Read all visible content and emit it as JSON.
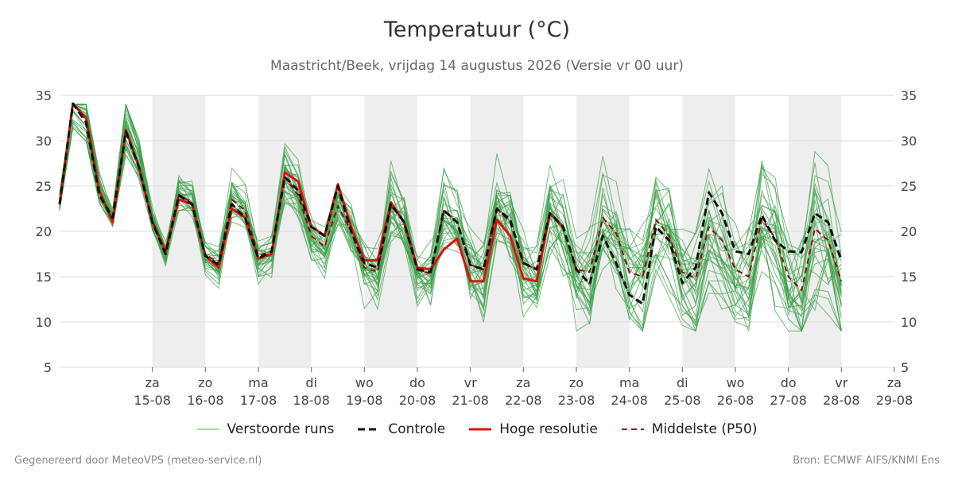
{
  "title": "Temperatuur (°C)",
  "subtitle": "Maastricht/Beek, vrijdag 14 augustus 2026 (Versie vr 00 uur)",
  "footer_left": "Gegenereerd door MeteoVPS (meteo-service.nl)",
  "footer_right": "Bron: ECMWF AIFS/KNMI Ens",
  "legend": [
    {
      "label": "Verstoorde runs",
      "color": "#5ab05a",
      "style": "thin-solid"
    },
    {
      "label": "Controle",
      "color": "#111111",
      "style": "dashed"
    },
    {
      "label": "Hoge resolutie",
      "color": "#dd1111",
      "style": "solid"
    },
    {
      "label": "Middelste (P50)",
      "color": "#8b1010",
      "style": "dashed"
    }
  ],
  "colors": {
    "ensemble": "#3fa04a",
    "control": "#111111",
    "hires": "#dd1111",
    "median": "#8b1010",
    "band": "#eeeeee",
    "grid": "#dddddd"
  },
  "chart_data": {
    "type": "line",
    "ylim": [
      5,
      35
    ],
    "yticks": [
      5,
      10,
      15,
      20,
      25,
      30,
      35
    ],
    "x_ticks": [
      {
        "day": "za",
        "date": "15-08",
        "x": 1
      },
      {
        "day": "zo",
        "date": "16-08",
        "x": 2
      },
      {
        "day": "ma",
        "date": "17-08",
        "x": 3
      },
      {
        "day": "di",
        "date": "18-08",
        "x": 4
      },
      {
        "day": "wo",
        "date": "19-08",
        "x": 5
      },
      {
        "day": "do",
        "date": "20-08",
        "x": 6
      },
      {
        "day": "vr",
        "date": "21-08",
        "x": 7
      },
      {
        "day": "za",
        "date": "22-08",
        "x": 8
      },
      {
        "day": "zo",
        "date": "23-08",
        "x": 9
      },
      {
        "day": "ma",
        "date": "24-08",
        "x": 10
      },
      {
        "day": "di",
        "date": "25-08",
        "x": 11
      },
      {
        "day": "wo",
        "date": "26-08",
        "x": 12
      },
      {
        "day": "do",
        "date": "27-08",
        "x": 13
      },
      {
        "day": "vr",
        "date": "28-08",
        "x": 14
      },
      {
        "day": "za",
        "date": "29-08",
        "x": 15
      }
    ],
    "xlim": [
      -0.75,
      15
    ],
    "shaded_days": [
      [
        1,
        2
      ],
      [
        3,
        4
      ],
      [
        5,
        6
      ],
      [
        7,
        8
      ],
      [
        9,
        10
      ],
      [
        11,
        12
      ],
      [
        13,
        14
      ]
    ],
    "step": 0.25,
    "x_start": -0.75,
    "ensemble_member_count": 30,
    "series": [
      {
        "name": "Hoge resolutie",
        "values": [
          23.0,
          34.1,
          32.5,
          24.5,
          21.0,
          31.2,
          27.0,
          21.0,
          17.8,
          23.5,
          23.0,
          17.3,
          16.0,
          22.5,
          21.5,
          17.0,
          17.5,
          26.5,
          25.5,
          20.5,
          19.5,
          25.2,
          20.5,
          16.8,
          16.8,
          23.2,
          21.0,
          16.0,
          15.8,
          18.0,
          19.2,
          14.5,
          14.5,
          21.3,
          19.5,
          14.8,
          14.5,
          22.0,
          20.5,
          null
        ]
      },
      {
        "name": "Controle",
        "values": [
          23.0,
          34.1,
          32.0,
          24.0,
          21.5,
          31.0,
          27.0,
          21.0,
          17.5,
          24.0,
          23.0,
          17.3,
          16.3,
          23.0,
          21.5,
          17.0,
          17.8,
          26.0,
          24.5,
          20.5,
          19.5,
          25.0,
          20.0,
          16.5,
          16.0,
          23.0,
          21.0,
          15.8,
          15.5,
          22.3,
          21.0,
          16.3,
          15.8,
          22.5,
          21.3,
          16.5,
          15.8,
          22.0,
          20.5,
          15.8,
          14.2,
          19.5,
          16.5,
          13.0,
          12.0,
          20.5,
          19.0,
          14.3,
          16.0,
          24.3,
          22.0,
          17.8,
          17.5,
          21.8,
          19.0,
          17.8,
          17.7,
          22.0,
          21.0,
          16.8
        ]
      },
      {
        "name": "Middelste (P50)",
        "values": [
          23.0,
          34.1,
          32.3,
          24.3,
          21.3,
          31.0,
          27.3,
          21.2,
          17.8,
          24.0,
          23.2,
          17.5,
          16.5,
          23.5,
          22.3,
          17.3,
          17.8,
          26.0,
          24.0,
          19.5,
          18.3,
          22.8,
          20.0,
          16.0,
          15.5,
          22.8,
          21.2,
          15.8,
          15.3,
          22.3,
          21.0,
          16.3,
          15.8,
          22.5,
          21.0,
          16.5,
          15.8,
          22.0,
          20.3,
          15.8,
          15.5,
          21.5,
          19.8,
          15.5,
          15.0,
          21.3,
          19.5,
          15.5,
          14.8,
          20.5,
          19.0,
          15.8,
          15.0,
          21.3,
          19.3,
          15.0,
          13.5,
          20.3,
          19.0,
          14.5
        ]
      }
    ]
  }
}
